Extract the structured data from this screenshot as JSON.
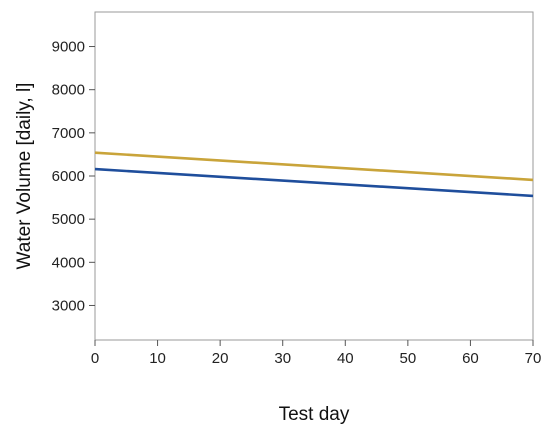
{
  "chart_data": {
    "type": "line",
    "title": "",
    "xlabel": "Test day",
    "ylabel": "Water Volume [daily, l]",
    "xlim": [
      0,
      70
    ],
    "ylim": [
      2200,
      9800
    ],
    "xticks": [
      0,
      10,
      20,
      30,
      40,
      50,
      60,
      70
    ],
    "yticks": [
      3000,
      4000,
      5000,
      6000,
      7000,
      8000,
      9000
    ],
    "grid": false,
    "legend": "none",
    "series": [
      {
        "color": "#c9a43a",
        "x": [
          0,
          70
        ],
        "y": [
          6540,
          5910
        ]
      },
      {
        "color": "#1f4e9c",
        "x": [
          0,
          70
        ],
        "y": [
          6160,
          5540
        ]
      }
    ]
  }
}
